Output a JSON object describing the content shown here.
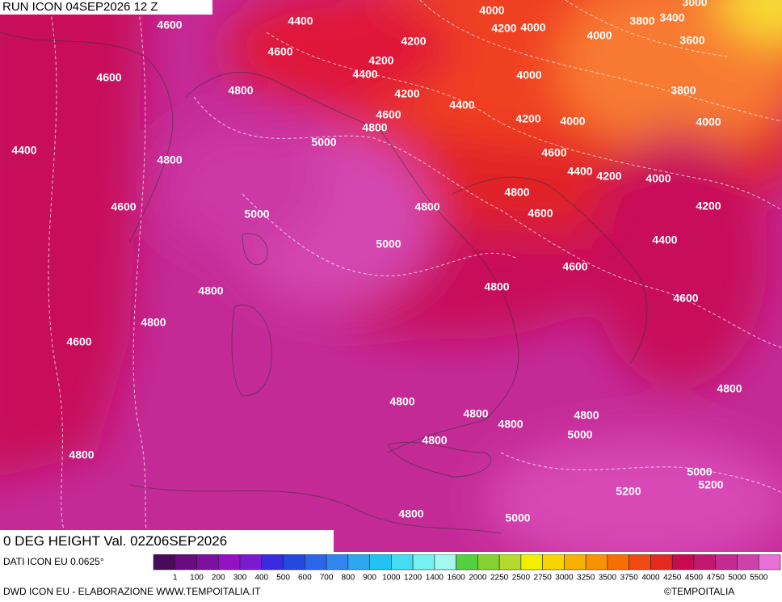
{
  "header": {
    "title": "RUN ICON 04SEP2026 12 Z"
  },
  "map": {
    "contour_labels": [
      4400,
      4600,
      4000,
      3000,
      4200,
      4000,
      3800,
      3400,
      4000,
      3600,
      4200,
      4600,
      4200,
      4600,
      4400,
      4000,
      4800,
      4200,
      4400,
      3800,
      4600,
      4200,
      4000,
      4000,
      4800,
      5000,
      4400,
      4800,
      4600,
      4400,
      4200,
      4000,
      4800,
      4600,
      4800,
      4200,
      5000,
      4600,
      4400,
      5000,
      4600,
      4800,
      4800,
      4600,
      4800,
      4600,
      4800,
      4800,
      4800,
      4800,
      4800,
      5000,
      4800,
      4800,
      5000,
      5200,
      5200,
      4800,
      5000
    ]
  },
  "variable": "0 DEG HEIGHT Val. 02Z06SEP2026",
  "source": "DATI ICON EU 0.0625°",
  "colorbar": {
    "labels": [
      1,
      100,
      200,
      300,
      400,
      500,
      600,
      700,
      800,
      900,
      1000,
      1200,
      1400,
      1600,
      2000,
      2250,
      2500,
      2750,
      3000,
      3250,
      3500,
      3750,
      4000,
      4250,
      4500,
      4750,
      5000,
      5500
    ]
  },
  "footer": {
    "left": "DWD ICON EU - ELABORAZIONE WWW.TEMPOITALIA.IT",
    "right": "©TEMPOITALIA"
  }
}
